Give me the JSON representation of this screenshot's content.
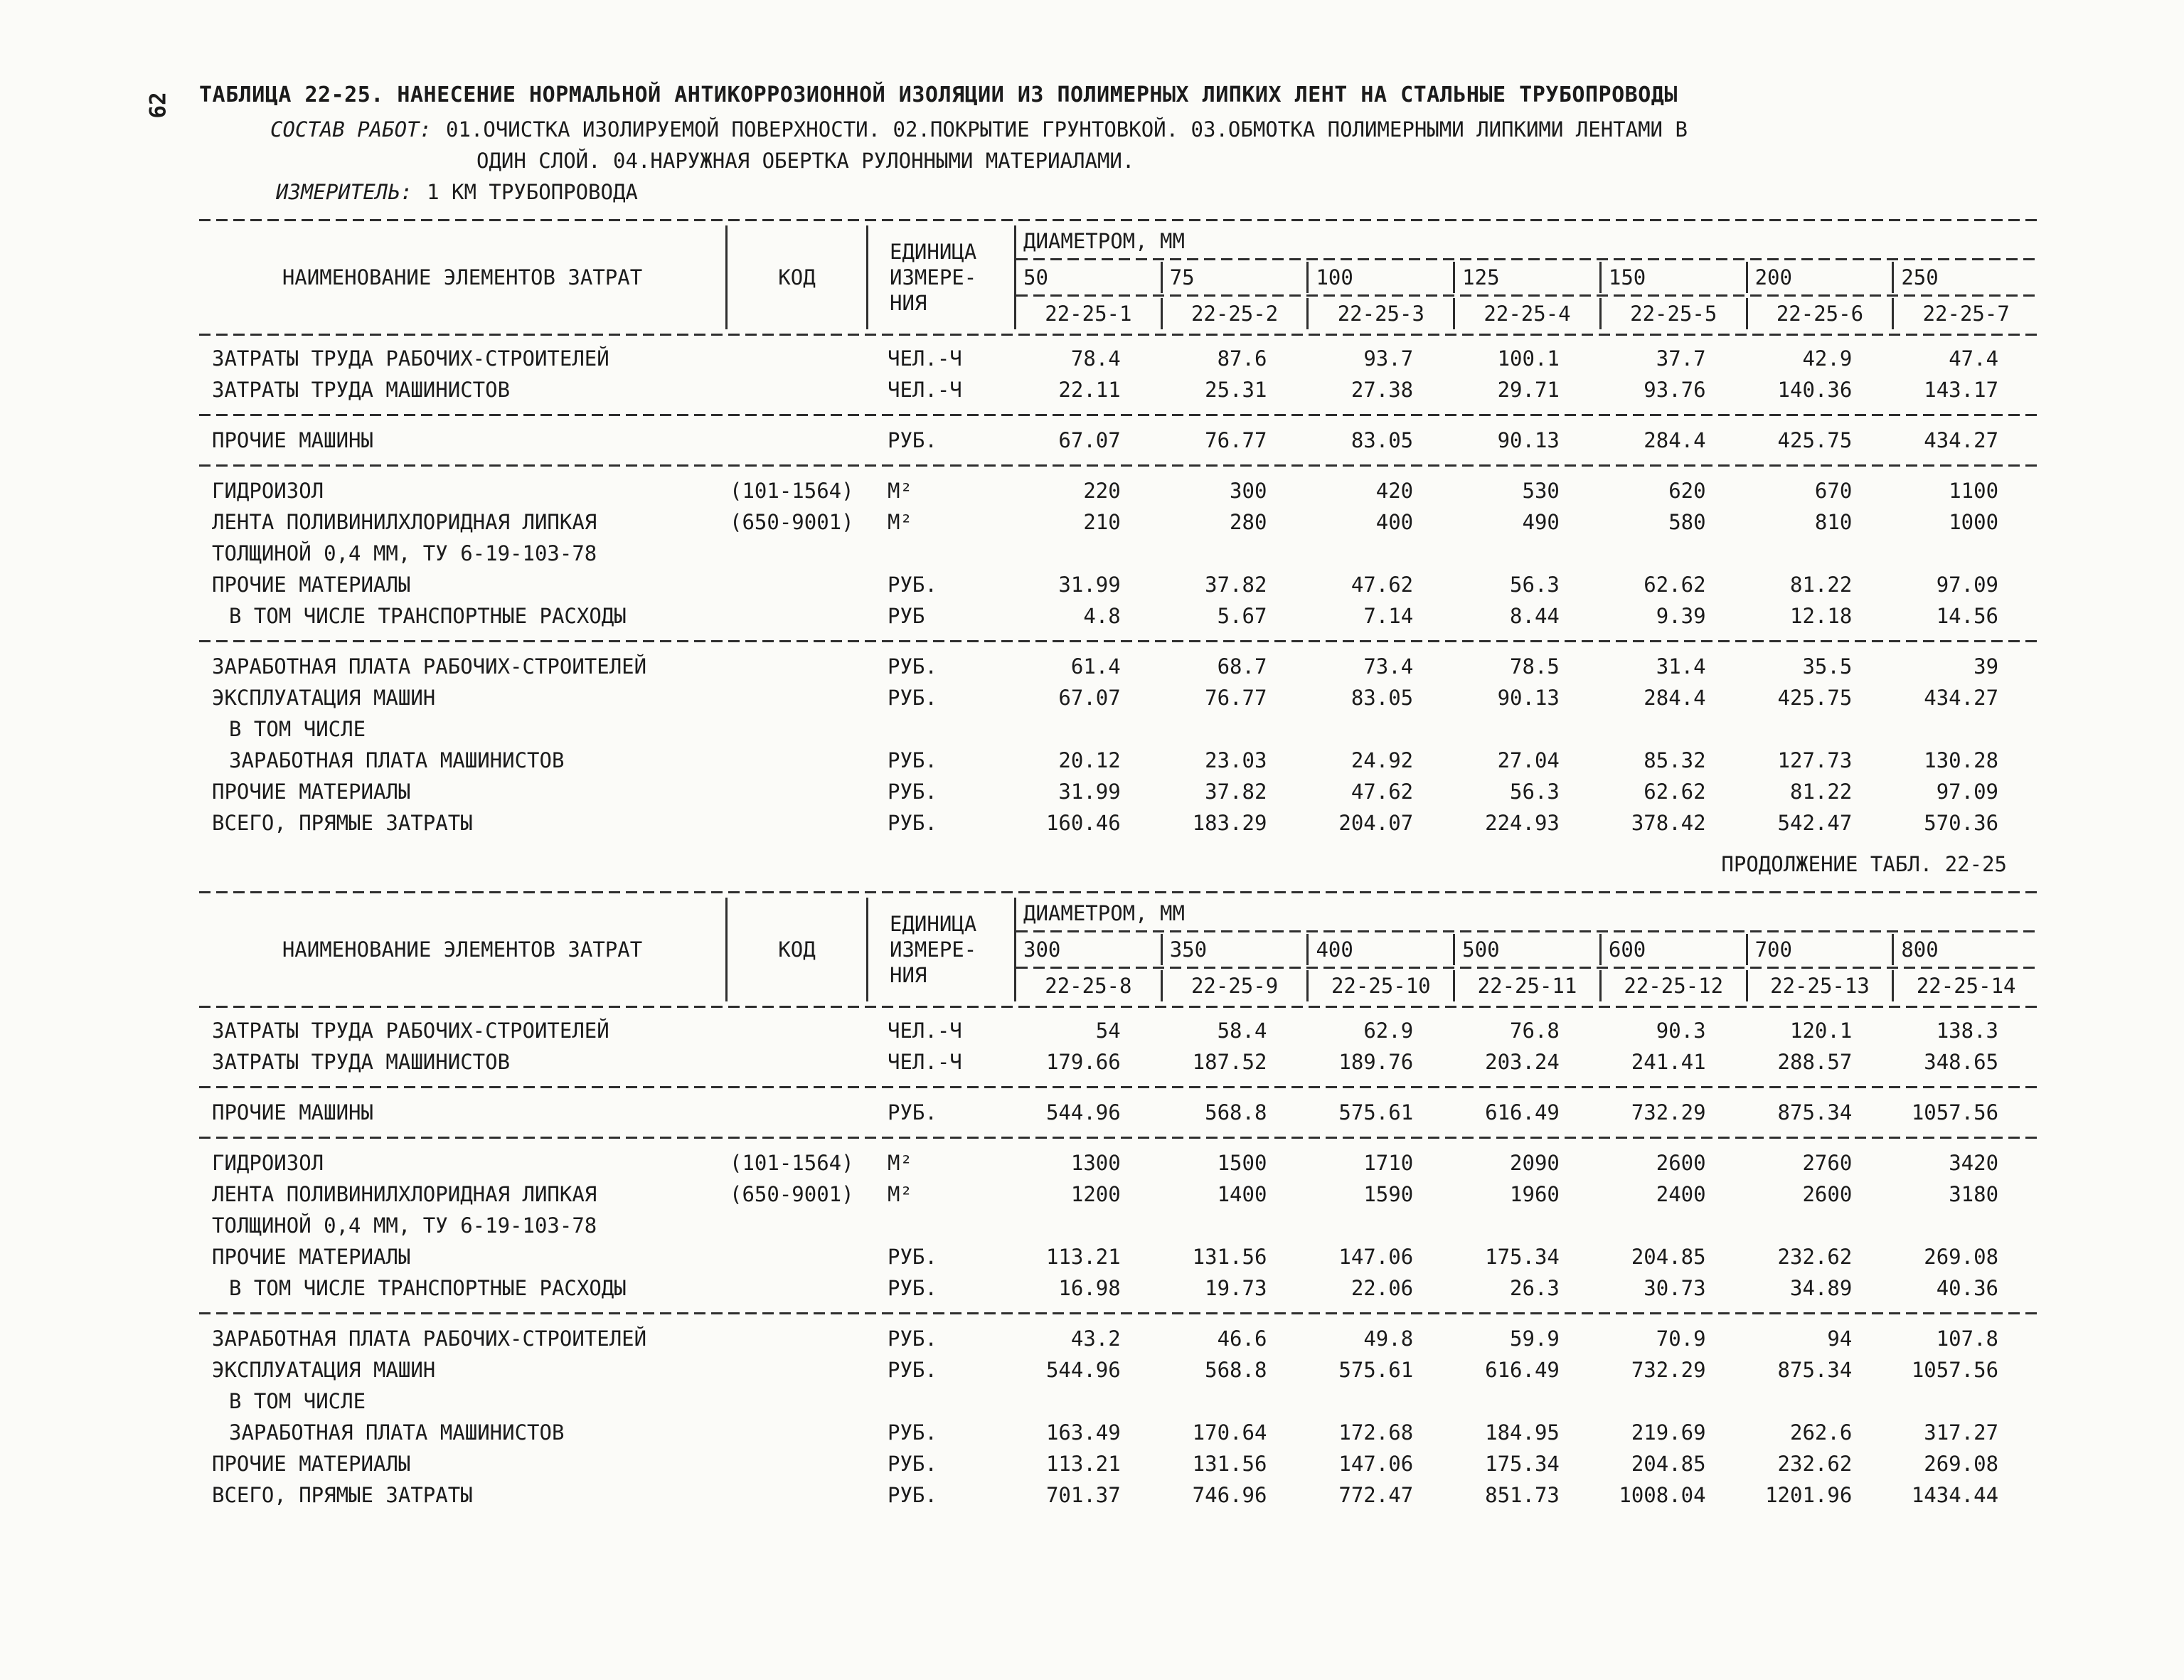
{
  "page": {
    "page_number": "62",
    "title": "ТАБЛИЦА 22-25. НАНЕСЕНИЕ НОРМАЛЬНОЙ АНТИКОРРОЗИОННОЙ ИЗОЛЯЦИИ ИЗ ПОЛИМЕРНЫХ ЛИПКИХ ЛЕНТ НА СТАЛЬНЫЕ ТРУБОПРОВОДЫ",
    "works_label": "СОСТАВ РАБОТ:",
    "works_line1": "01.ОЧИСТКА ИЗОЛИРУЕМОЙ ПОВЕРХНОСТИ. 02.ПОКРЫТИЕ ГРУНТОВКОЙ. 03.ОБМОТКА ПОЛИМЕРНЫМИ ЛИПКИМИ ЛЕНТАМИ В",
    "works_line2": "ОДИН СЛОЙ. 04.НАРУЖНАЯ ОБЕРТКА РУЛОННЫМИ МАТЕРИАЛАМИ.",
    "meter_label": "ИЗМЕРИТЕЛЬ:",
    "meter_value": "1 КМ ТРУБОПРОВОДА",
    "continuation": "ПРОДОЛЖЕНИЕ ТАБЛ. 22-25"
  },
  "header_labels": {
    "name_col": "НАИМЕНОВАНИЕ ЭЛЕМЕНТОВ ЗАТРАТ",
    "code_col": "КОД",
    "unit_lines": [
      "ЕДИНИЦА",
      "ИЗМЕРЕ-",
      "НИЯ"
    ],
    "diameter_label": "ДИАМЕТРОМ, ММ"
  },
  "tables": [
    {
      "diameters": [
        "50",
        "75",
        "100",
        "125",
        "150",
        "200",
        "250"
      ],
      "norm_codes": [
        "22-25-1",
        "22-25-2",
        "22-25-3",
        "22-25-4",
        "22-25-5",
        "22-25-6",
        "22-25-7"
      ],
      "groups": [
        [
          {
            "name": "ЗАТРАТЫ ТРУДА РАБОЧИХ-СТРОИТЕЛЕЙ",
            "unit": "ЧЕЛ.-Ч",
            "values": [
              "78.4",
              "87.6",
              "93.7",
              "100.1",
              "37.7",
              "42.9",
              "47.4"
            ]
          },
          {
            "name": "ЗАТРАТЫ ТРУДА МАШИНИСТОВ",
            "unit": "ЧЕЛ.-Ч",
            "values": [
              "22.11",
              "25.31",
              "27.38",
              "29.71",
              "93.76",
              "140.36",
              "143.17"
            ]
          }
        ],
        [
          {
            "name": "ПРОЧИЕ МАШИНЫ",
            "unit": "РУБ.",
            "values": [
              "67.07",
              "76.77",
              "83.05",
              "90.13",
              "284.4",
              "425.75",
              "434.27"
            ]
          }
        ],
        [
          {
            "name": "ГИДРОИЗОЛ",
            "code": "(101-1564)",
            "unit": "М²",
            "values": [
              "220",
              "300",
              "420",
              "530",
              "620",
              "670",
              "1100"
            ]
          },
          {
            "name": "ЛЕНТА ПОЛИВИНИЛХЛОРИДНАЯ ЛИПКАЯ",
            "code": "(650-9001)",
            "unit": "М²",
            "values": [
              "210",
              "280",
              "400",
              "490",
              "580",
              "810",
              "1000"
            ]
          },
          {
            "name": "ТОЛЩИНОЙ 0,4 ММ, ТУ 6-19-103-78",
            "values": []
          },
          {
            "name": "ПРОЧИЕ МАТЕРИАЛЫ",
            "unit": "РУБ.",
            "values": [
              "31.99",
              "37.82",
              "47.62",
              "56.3",
              "62.62",
              "81.22",
              "97.09"
            ]
          },
          {
            "name": "В ТОМ ЧИСЛЕ ТРАНСПОРТНЫЕ РАСХОДЫ",
            "indent": true,
            "unit": "РУБ",
            "values": [
              "4.8",
              "5.67",
              "7.14",
              "8.44",
              "9.39",
              "12.18",
              "14.56"
            ]
          }
        ],
        [
          {
            "name": "ЗАРАБОТНАЯ ПЛАТА РАБОЧИХ-СТРОИТЕЛЕЙ",
            "unit": "РУБ.",
            "values": [
              "61.4",
              "68.7",
              "73.4",
              "78.5",
              "31.4",
              "35.5",
              "39"
            ]
          },
          {
            "name": "ЭКСПЛУАТАЦИЯ МАШИН",
            "unit": "РУБ.",
            "values": [
              "67.07",
              "76.77",
              "83.05",
              "90.13",
              "284.4",
              "425.75",
              "434.27"
            ]
          },
          {
            "name": "В ТОМ ЧИСЛЕ",
            "indent": true,
            "values": []
          },
          {
            "name": "ЗАРАБОТНАЯ ПЛАТА МАШИНИСТОВ",
            "indent": true,
            "unit": "РУБ.",
            "values": [
              "20.12",
              "23.03",
              "24.92",
              "27.04",
              "85.32",
              "127.73",
              "130.28"
            ]
          },
          {
            "name": "ПРОЧИЕ МАТЕРИАЛЫ",
            "unit": "РУБ.",
            "values": [
              "31.99",
              "37.82",
              "47.62",
              "56.3",
              "62.62",
              "81.22",
              "97.09"
            ]
          },
          {
            "name": "ВСЕГО, ПРЯМЫЕ ЗАТРАТЫ",
            "unit": "РУБ.",
            "values": [
              "160.46",
              "183.29",
              "204.07",
              "224.93",
              "378.42",
              "542.47",
              "570.36"
            ]
          }
        ]
      ]
    },
    {
      "diameters": [
        "300",
        "350",
        "400",
        "500",
        "600",
        "700",
        "800"
      ],
      "norm_codes": [
        "22-25-8",
        "22-25-9",
        "22-25-10",
        "22-25-11",
        "22-25-12",
        "22-25-13",
        "22-25-14"
      ],
      "groups": [
        [
          {
            "name": "ЗАТРАТЫ ТРУДА РАБОЧИХ-СТРОИТЕЛЕЙ",
            "unit": "ЧЕЛ.-Ч",
            "values": [
              "54",
              "58.4",
              "62.9",
              "76.8",
              "90.3",
              "120.1",
              "138.3"
            ]
          },
          {
            "name": "ЗАТРАТЫ ТРУДА МАШИНИСТОВ",
            "unit": "ЧЕЛ.-Ч",
            "values": [
              "179.66",
              "187.52",
              "189.76",
              "203.24",
              "241.41",
              "288.57",
              "348.65"
            ]
          }
        ],
        [
          {
            "name": "ПРОЧИЕ МАШИНЫ",
            "unit": "РУБ.",
            "values": [
              "544.96",
              "568.8",
              "575.61",
              "616.49",
              "732.29",
              "875.34",
              "1057.56"
            ]
          }
        ],
        [
          {
            "name": "ГИДРОИЗОЛ",
            "code": "(101-1564)",
            "unit": "М²",
            "values": [
              "1300",
              "1500",
              "1710",
              "2090",
              "2600",
              "2760",
              "3420"
            ]
          },
          {
            "name": "ЛЕНТА ПОЛИВИНИЛХЛОРИДНАЯ ЛИПКАЯ",
            "code": "(650-9001)",
            "unit": "М²",
            "values": [
              "1200",
              "1400",
              "1590",
              "1960",
              "2400",
              "2600",
              "3180"
            ]
          },
          {
            "name": "ТОЛЩИНОЙ 0,4 ММ, ТУ 6-19-103-78",
            "values": []
          },
          {
            "name": "ПРОЧИЕ МАТЕРИАЛЫ",
            "unit": "РУБ.",
            "values": [
              "113.21",
              "131.56",
              "147.06",
              "175.34",
              "204.85",
              "232.62",
              "269.08"
            ]
          },
          {
            "name": "В ТОМ ЧИСЛЕ ТРАНСПОРТНЫЕ РАСХОДЫ",
            "indent": true,
            "unit": "РУБ.",
            "values": [
              "16.98",
              "19.73",
              "22.06",
              "26.3",
              "30.73",
              "34.89",
              "40.36"
            ]
          }
        ],
        [
          {
            "name": "ЗАРАБОТНАЯ ПЛАТА РАБОЧИХ-СТРОИТЕЛЕЙ",
            "unit": "РУБ.",
            "values": [
              "43.2",
              "46.6",
              "49.8",
              "59.9",
              "70.9",
              "94",
              "107.8"
            ]
          },
          {
            "name": "ЭКСПЛУАТАЦИЯ МАШИН",
            "unit": "РУБ.",
            "values": [
              "544.96",
              "568.8",
              "575.61",
              "616.49",
              "732.29",
              "875.34",
              "1057.56"
            ]
          },
          {
            "name": "В ТОМ ЧИСЛЕ",
            "indent": true,
            "values": []
          },
          {
            "name": "ЗАРАБОТНАЯ ПЛАТА МАШИНИСТОВ",
            "indent": true,
            "unit": "РУБ.",
            "values": [
              "163.49",
              "170.64",
              "172.68",
              "184.95",
              "219.69",
              "262.6",
              "317.27"
            ]
          },
          {
            "name": "ПРОЧИЕ МАТЕРИАЛЫ",
            "unit": "РУБ.",
            "values": [
              "113.21",
              "131.56",
              "147.06",
              "175.34",
              "204.85",
              "232.62",
              "269.08"
            ]
          },
          {
            "name": "ВСЕГО, ПРЯМЫЕ ЗАТРАТЫ",
            "unit": "РУБ.",
            "values": [
              "701.37",
              "746.96",
              "772.47",
              "851.73",
              "1008.04",
              "1201.96",
              "1434.44"
            ]
          }
        ]
      ]
    }
  ]
}
